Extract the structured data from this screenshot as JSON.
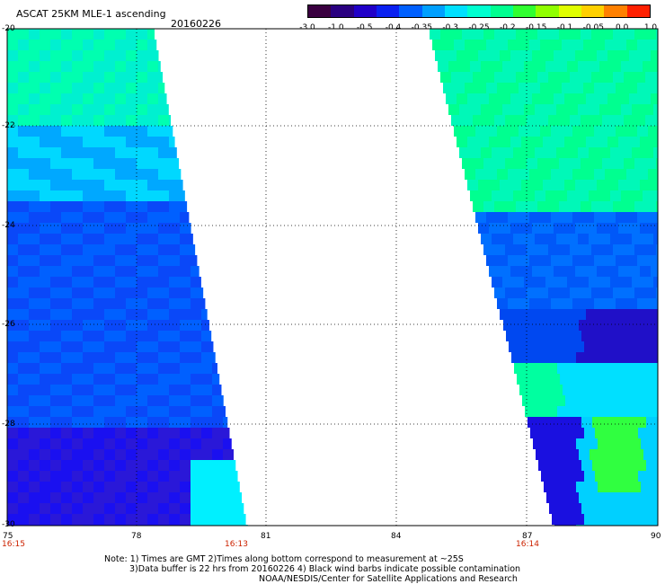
{
  "header": {
    "title": "ASCAT 25KM MLE-1 ascending",
    "date": "20160226"
  },
  "colorbar": {
    "colors": [
      "#3a0040",
      "#2a0080",
      "#2000c8",
      "#0a20f0",
      "#0060ff",
      "#00a0ff",
      "#00e0ff",
      "#00ffd0",
      "#00ff90",
      "#30ff30",
      "#90ff00",
      "#e0ff00",
      "#ffd000",
      "#ff8000",
      "#ff2000"
    ],
    "labels": [
      "-3.0",
      "-1.0",
      "-0.5",
      "-0.4",
      "-0.35",
      "-0.3",
      "-0.25",
      "-0.2",
      "-0.15",
      "-0.1",
      "-0.05",
      "0.0",
      "1.0"
    ]
  },
  "map": {
    "lon_range": [
      75,
      90
    ],
    "lat_range": [
      -20,
      -30
    ],
    "x_ticks": [
      "75",
      "78",
      "81",
      "84",
      "87",
      "90"
    ],
    "y_ticks": [
      "-20",
      "-22",
      "-24",
      "-26",
      "-28",
      "-30"
    ],
    "grid_lines": "dotted"
  },
  "pass_times": {
    "t1": "16:15",
    "t2": "16:13",
    "t3": "16:14"
  },
  "footer": {
    "line1": "Note: 1) Times are GMT 2)Times along bottom correspond to measurement at ~25S",
    "line2": "3)Data buffer is 22 hrs from 20160226 4) Black wind barbs indicate possible contamination",
    "line3": "NOAA/NESDIS/Center for Satellite Applications and Research"
  }
}
